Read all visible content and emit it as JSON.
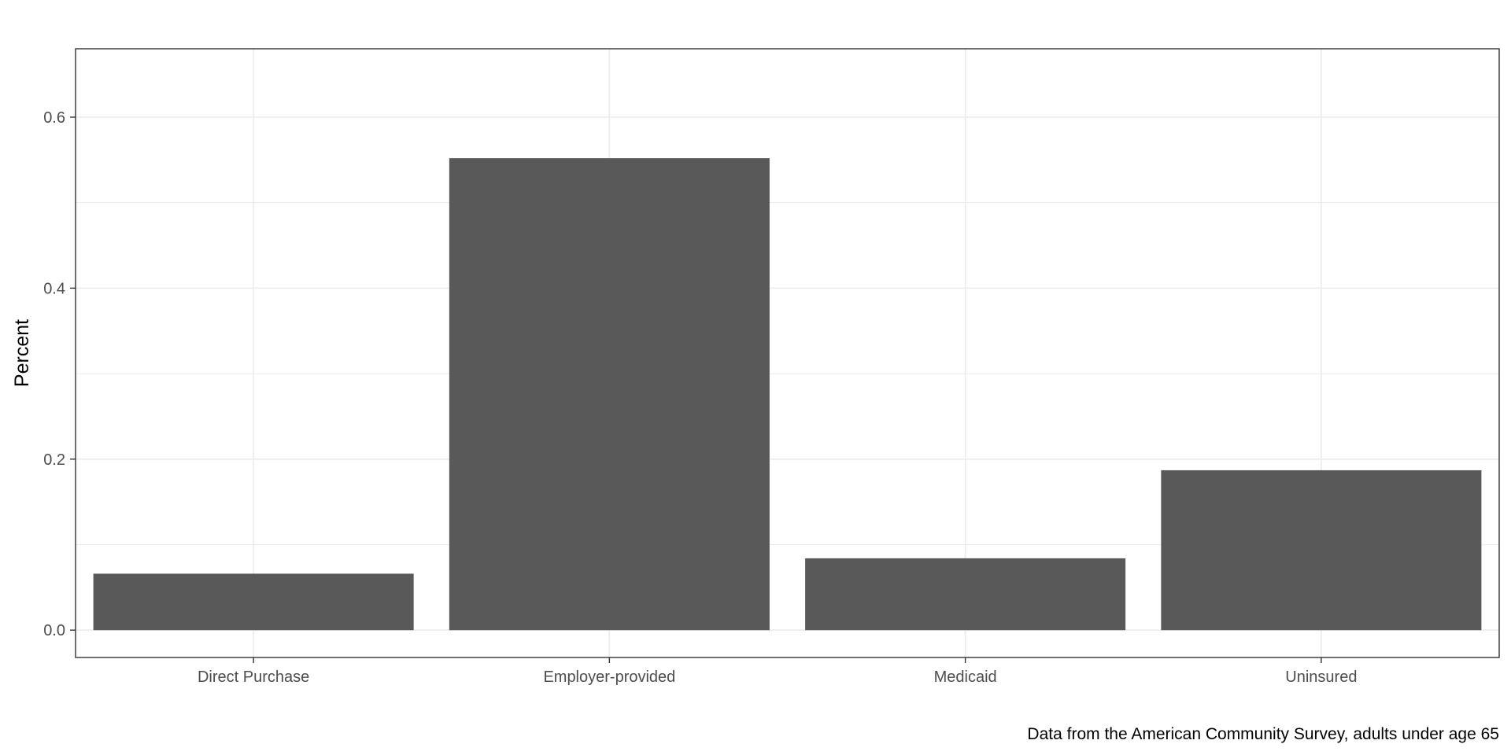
{
  "chart_data": {
    "type": "bar",
    "categories": [
      "Direct Purchase",
      "Employer-provided",
      "Medicaid",
      "Uninsured"
    ],
    "values": [
      0.066,
      0.552,
      0.084,
      0.187
    ],
    "title": "",
    "xlabel": "",
    "ylabel": "Percent",
    "caption": "Data from the American Community Survey, adults under age 65",
    "ylim": [
      -0.032,
      0.68
    ],
    "yticks": [
      0.0,
      0.2,
      0.4,
      0.6
    ],
    "ytick_labels": [
      "0.0",
      "0.2",
      "0.4",
      "0.6"
    ],
    "grid": true,
    "legend": "none",
    "bar_color": "#595959",
    "grid_color": "#ebebeb",
    "panel_border_color": "#333333"
  }
}
